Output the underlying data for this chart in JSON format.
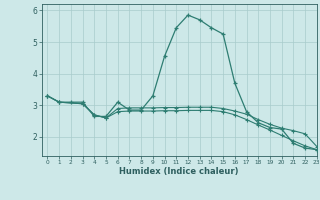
{
  "line1_x": [
    0,
    1,
    2,
    3,
    4,
    5,
    6,
    7,
    8,
    9,
    10,
    11,
    12,
    13,
    14,
    15,
    16,
    17,
    18,
    19,
    20,
    21,
    22,
    23
  ],
  "line1_y": [
    3.3,
    3.1,
    3.1,
    3.1,
    2.65,
    2.65,
    3.1,
    2.85,
    2.85,
    3.3,
    4.55,
    5.45,
    5.85,
    5.7,
    5.45,
    5.25,
    3.7,
    2.8,
    2.45,
    2.3,
    2.25,
    1.8,
    1.65,
    1.6
  ],
  "line2_x": [
    0,
    1,
    3,
    4,
    5,
    6,
    7,
    8,
    9,
    10,
    11,
    12,
    13,
    14,
    15,
    16,
    17,
    18,
    19,
    20,
    21,
    22,
    23
  ],
  "line2_y": [
    3.3,
    3.1,
    3.05,
    2.7,
    2.6,
    2.9,
    2.92,
    2.92,
    2.92,
    2.93,
    2.93,
    2.94,
    2.94,
    2.94,
    2.9,
    2.82,
    2.72,
    2.55,
    2.4,
    2.28,
    2.2,
    2.1,
    1.7
  ],
  "line3_x": [
    0,
    1,
    3,
    4,
    5,
    6,
    7,
    8,
    9,
    10,
    11,
    12,
    13,
    14,
    15,
    16,
    17,
    18,
    19,
    20,
    21,
    22,
    23
  ],
  "line3_y": [
    3.3,
    3.1,
    3.05,
    2.7,
    2.6,
    2.8,
    2.82,
    2.82,
    2.82,
    2.83,
    2.83,
    2.84,
    2.84,
    2.84,
    2.8,
    2.7,
    2.55,
    2.38,
    2.22,
    2.05,
    1.88,
    1.72,
    1.6
  ],
  "line_color": "#2e7d72",
  "bg_color": "#cde8e8",
  "grid_color": "#a8cccc",
  "axis_color": "#2e5f5f",
  "xlabel": "Humidex (Indice chaleur)",
  "xlim": [
    -0.5,
    23
  ],
  "ylim": [
    1.4,
    6.2
  ],
  "xticks": [
    0,
    1,
    2,
    3,
    4,
    5,
    6,
    7,
    8,
    9,
    10,
    11,
    12,
    13,
    14,
    15,
    16,
    17,
    18,
    19,
    20,
    21,
    22,
    23
  ],
  "yticks": [
    2,
    3,
    4,
    5,
    6
  ]
}
